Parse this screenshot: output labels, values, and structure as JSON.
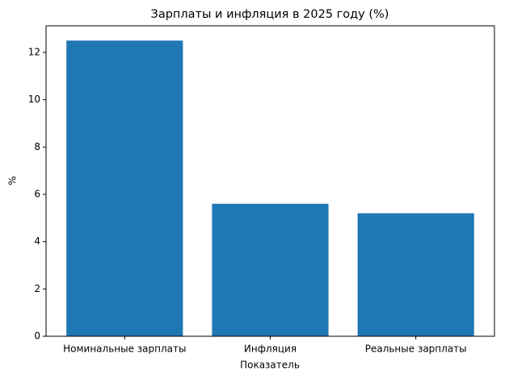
{
  "chart_data": {
    "type": "bar",
    "title": "Зарплаты и инфляция в 2025 году (%)",
    "x_label": "Показатель",
    "y_label": "%",
    "categories": [
      "Номинальные зарплаты",
      "Инфляция",
      "Реальные зарплаты"
    ],
    "values": [
      12.5,
      5.6,
      5.2
    ],
    "color": "#1f77b4",
    "ylim": [
      0,
      13.125
    ],
    "yticks": [
      0,
      2,
      4,
      6,
      8,
      10,
      12
    ],
    "grid": false
  }
}
